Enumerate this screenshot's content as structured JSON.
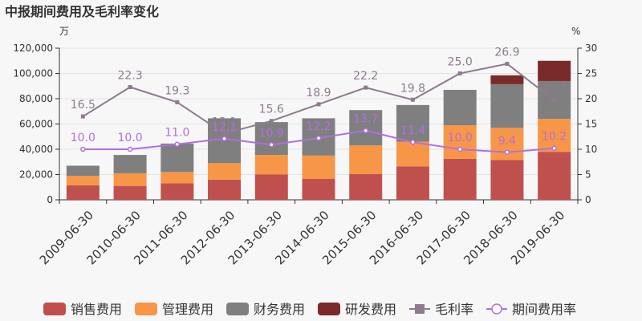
{
  "chart_data": {
    "type": "bar",
    "title": "中报期间费用及毛利率变化",
    "left_unit": "万",
    "right_unit": "%",
    "categories": [
      "2009-06-30",
      "2010-06-30",
      "2011-06-30",
      "2012-06-30",
      "2013-06-30",
      "2014-06-30",
      "2015-06-30",
      "2016-06-30",
      "2017-06-30",
      "2018-06-30",
      "2019-06-30"
    ],
    "left_axis": {
      "min": 0,
      "max": 120000,
      "ticks": [
        "0",
        "20,000",
        "40,000",
        "60,000",
        "80,000",
        "100,000",
        "120,000"
      ]
    },
    "right_axis": {
      "min": 0,
      "max": 30,
      "ticks": [
        "0",
        "5",
        "10",
        "15",
        "20",
        "25",
        "30"
      ]
    },
    "series": [
      {
        "name": "销售费用",
        "kind": "bar",
        "color": "#c0504d",
        "values": [
          11500,
          11000,
          13000,
          16000,
          20000,
          16500,
          20500,
          26500,
          32500,
          31500,
          38000
        ]
      },
      {
        "name": "管理费用",
        "kind": "bar",
        "color": "#f79646",
        "values": [
          7500,
          10000,
          9000,
          13000,
          15500,
          18500,
          22500,
          19500,
          26500,
          25500,
          26000
        ]
      },
      {
        "name": "财务费用",
        "kind": "bar",
        "color": "#7f7f7f",
        "values": [
          8000,
          14500,
          22500,
          35500,
          26000,
          29500,
          28000,
          29000,
          28000,
          34500,
          30000
        ]
      },
      {
        "name": "研发费用",
        "kind": "bar",
        "color": "#7b2a2a",
        "values": [
          0,
          0,
          0,
          0,
          0,
          0,
          0,
          0,
          0,
          7000,
          16000
        ]
      },
      {
        "name": "毛利率",
        "kind": "line",
        "axis": "right",
        "color": "#8e7b8e",
        "values": [
          16.5,
          22.3,
          19.3,
          13.1,
          15.6,
          18.9,
          22.2,
          19.8,
          25.0,
          26.9,
          19.7
        ],
        "labels": [
          "16.5",
          "22.3",
          "19.3",
          "13.1",
          "15.6",
          "18.9",
          "22.2",
          "19.8",
          "25.0",
          "26.9",
          "19.7"
        ]
      },
      {
        "name": "期间费用率",
        "kind": "line",
        "axis": "right",
        "color": "#b26fe0",
        "values": [
          10.0,
          10.0,
          11.0,
          12.1,
          10.9,
          12.2,
          13.7,
          11.4,
          10.0,
          9.4,
          10.2
        ],
        "labels": [
          "10.0",
          "10.0",
          "11.0",
          "12.1",
          "10.9",
          "12.2",
          "13.7",
          "11.4",
          "10.0",
          "9.4",
          "10.2"
        ]
      }
    ],
    "grid": true,
    "legend_position": "bottom"
  }
}
